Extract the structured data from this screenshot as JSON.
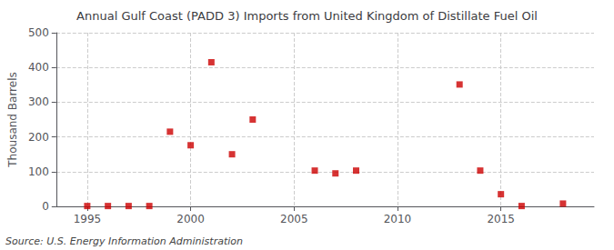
{
  "chart_data": {
    "type": "scatter",
    "title": "Annual Gulf Coast (PADD 3) Imports from United Kingdom of Distillate Fuel Oil",
    "ylabel": "Thousand Barrels",
    "annotations": [
      "Source: U.S. Energy Information Administration"
    ],
    "x": [
      1995,
      1996,
      1997,
      1998,
      1999,
      2000,
      2001,
      2002,
      2003,
      2006,
      2007,
      2008,
      2013,
      2014,
      2015,
      2016,
      2018
    ],
    "values": [
      1,
      1,
      1,
      1,
      215,
      176,
      415,
      150,
      250,
      103,
      95,
      103,
      351,
      103,
      35,
      1,
      8
    ],
    "color": "#cc0000",
    "marker": "square",
    "xlim": [
      1993.5,
      2019.5
    ],
    "xticks": [
      1995,
      2000,
      2005,
      2010,
      2015
    ],
    "ylim": [
      0,
      500
    ],
    "yticks": [
      0,
      100,
      200,
      300,
      400,
      500
    ],
    "grid": true
  }
}
